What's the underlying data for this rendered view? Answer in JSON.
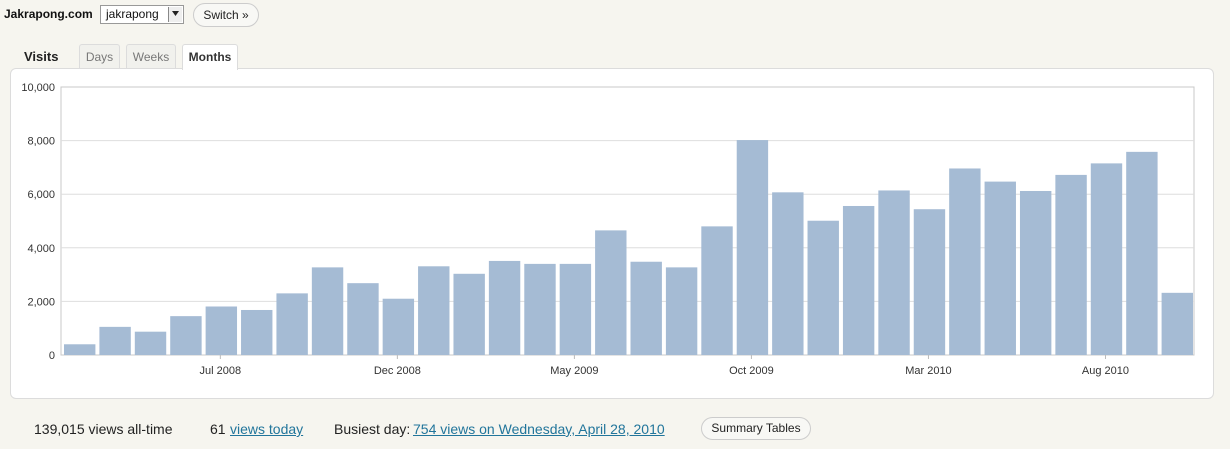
{
  "header": {
    "site_title": "Jakrapong.com",
    "blog_select_value": "jakrapong",
    "switch_label": "Switch »"
  },
  "tabs": {
    "label": "Visits",
    "items": [
      {
        "label": "Days",
        "active": false
      },
      {
        "label": "Weeks",
        "active": false
      },
      {
        "label": "Months",
        "active": true
      }
    ]
  },
  "chart_data": {
    "type": "bar",
    "title": "",
    "xlabel": "",
    "ylabel": "",
    "ylim": [
      0,
      10000
    ],
    "y_ticks": [
      "0",
      "2,000",
      "4,000",
      "6,000",
      "8,000",
      "10,000"
    ],
    "x_tick_labels": [
      {
        "label": "Jul 2008",
        "index": 4
      },
      {
        "label": "Dec 2008",
        "index": 9
      },
      {
        "label": "May 2009",
        "index": 14
      },
      {
        "label": "Oct 2009",
        "index": 19
      },
      {
        "label": "Mar 2010",
        "index": 24
      },
      {
        "label": "Aug 2010",
        "index": 29
      }
    ],
    "categories": [
      "Mar 2008",
      "Apr 2008",
      "May 2008",
      "Jun 2008",
      "Jul 2008",
      "Aug 2008",
      "Sep 2008",
      "Oct 2008",
      "Nov 2008",
      "Dec 2008",
      "Jan 2009",
      "Feb 2009",
      "Mar 2009",
      "Apr 2009",
      "May 2009",
      "Jun 2009",
      "Jul 2009",
      "Aug 2009",
      "Sep 2009",
      "Oct 2009",
      "Nov 2009",
      "Dec 2009",
      "Jan 2010",
      "Feb 2010",
      "Mar 2010",
      "Apr 2010",
      "May 2010",
      "Jun 2010",
      "Jul 2010",
      "Aug 2010",
      "Sep 2010",
      "Oct 2010"
    ],
    "values": [
      400,
      1050,
      870,
      1450,
      1810,
      1680,
      2300,
      3270,
      2680,
      2100,
      3310,
      3030,
      3510,
      3400,
      3400,
      4650,
      3480,
      3270,
      4800,
      8020,
      6070,
      5010,
      5560,
      6140,
      5440,
      6960,
      6470,
      6120,
      6720,
      7150,
      7580,
      2320
    ],
    "grid": true,
    "bar_color": "#a5bbd4"
  },
  "footer": {
    "all_time": "139,015 views all-time",
    "today_count": "61",
    "today_link": "views today",
    "busiest_label": "Busiest day:",
    "busiest_link": "754 views on Wednesday, April 28, 2010",
    "summary_label": "Summary Tables"
  }
}
